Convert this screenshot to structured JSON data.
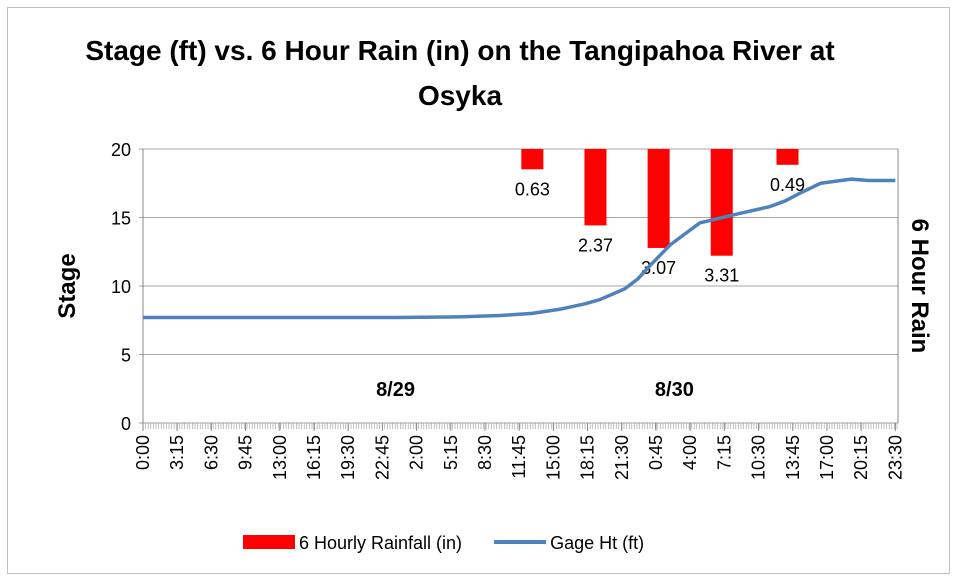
{
  "chart_data": {
    "type": "combo",
    "title": "Stage (ft) vs. 6 Hour Rain (in) on the Tangipahoa River at Osyka",
    "y_label": "Stage",
    "y2_label": "6 Hour Rain",
    "xlim": [
      0,
      71.75
    ],
    "xticks": [
      {
        "value": 0,
        "label": "0:00"
      },
      {
        "value": 3.25,
        "label": "3:15"
      },
      {
        "value": 6.5,
        "label": "6:30"
      },
      {
        "value": 9.75,
        "label": "9:45"
      },
      {
        "value": 13,
        "label": "13:00"
      },
      {
        "value": 16.25,
        "label": "16:15"
      },
      {
        "value": 19.5,
        "label": "19:30"
      },
      {
        "value": 22.75,
        "label": "22:45"
      },
      {
        "value": 26,
        "label": "2:00"
      },
      {
        "value": 29.25,
        "label": "5:15"
      },
      {
        "value": 32.5,
        "label": "8:30"
      },
      {
        "value": 35.75,
        "label": "11:45"
      },
      {
        "value": 39,
        "label": "15:00"
      },
      {
        "value": 42.25,
        "label": "18:15"
      },
      {
        "value": 45.5,
        "label": "21:30"
      },
      {
        "value": 48.75,
        "label": "0:45"
      },
      {
        "value": 52,
        "label": "4:00"
      },
      {
        "value": 55.25,
        "label": "7:15"
      },
      {
        "value": 58.5,
        "label": "10:30"
      },
      {
        "value": 61.75,
        "label": "13:45"
      },
      {
        "value": 65,
        "label": "17:00"
      },
      {
        "value": 68.25,
        "label": "20:15"
      },
      {
        "value": 71.5,
        "label": "23:30"
      }
    ],
    "ylim": [
      0,
      20
    ],
    "yticks": [
      0,
      5,
      10,
      15,
      20
    ],
    "y2lim": [
      0,
      8.5
    ],
    "y2_inverted": true,
    "grid": true,
    "legend": "bottom",
    "series": [
      {
        "name": "6 Hourly Rainfall (in)",
        "type": "bar",
        "axis": "y2",
        "color": "#ff0000",
        "x": [
          37,
          43,
          49,
          55,
          61.25
        ],
        "values": [
          0.63,
          2.37,
          3.07,
          3.31,
          0.49
        ]
      },
      {
        "name": "Gage Ht (ft)",
        "type": "line",
        "color": "#4f81bd",
        "x": [
          0,
          6,
          12,
          18,
          24,
          30,
          34,
          37,
          39.6,
          42,
          43.4,
          45.8,
          47,
          48.2,
          50.1,
          52.9,
          56.7,
          59.6,
          61,
          62.5,
          64.4,
          67.3,
          69,
          71.5
        ],
        "values": [
          7.7,
          7.7,
          7.7,
          7.7,
          7.7,
          7.75,
          7.85,
          8.0,
          8.3,
          8.7,
          9.0,
          9.8,
          10.5,
          11.5,
          13.0,
          14.6,
          15.3,
          15.8,
          16.2,
          16.8,
          17.5,
          17.8,
          17.7,
          17.7
        ]
      }
    ],
    "annotations": [
      {
        "text": "8/29",
        "x": 24
      },
      {
        "text": "8/30",
        "x": 50.5
      }
    ]
  }
}
